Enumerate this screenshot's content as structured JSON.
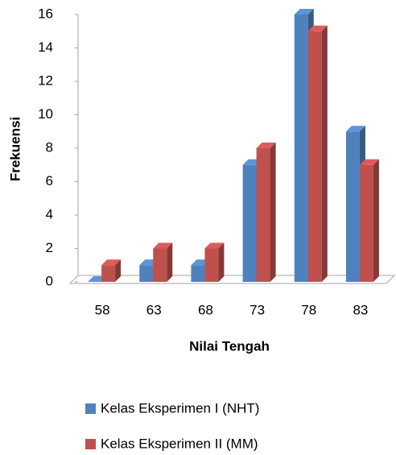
{
  "chart_data": {
    "type": "bar3d",
    "xlabel": "Nilai Tengah",
    "ylabel": "Frekuensi",
    "categories": [
      "58",
      "63",
      "68",
      "73",
      "78",
      "83"
    ],
    "series": [
      {
        "name": "Kelas Eksperimen I (NHT)",
        "color": "#4f81bd",
        "values": [
          0,
          1,
          1,
          7,
          16,
          9
        ]
      },
      {
        "name": "Kelas Eksperimen II (MM)",
        "color": "#c0504d",
        "values": [
          1,
          2,
          2,
          8,
          15,
          7
        ]
      }
    ],
    "ylim": [
      0,
      16
    ],
    "yticks": [
      0,
      2,
      4,
      6,
      8,
      10,
      12,
      14,
      16
    ],
    "grid": false,
    "legend": "bottom"
  }
}
